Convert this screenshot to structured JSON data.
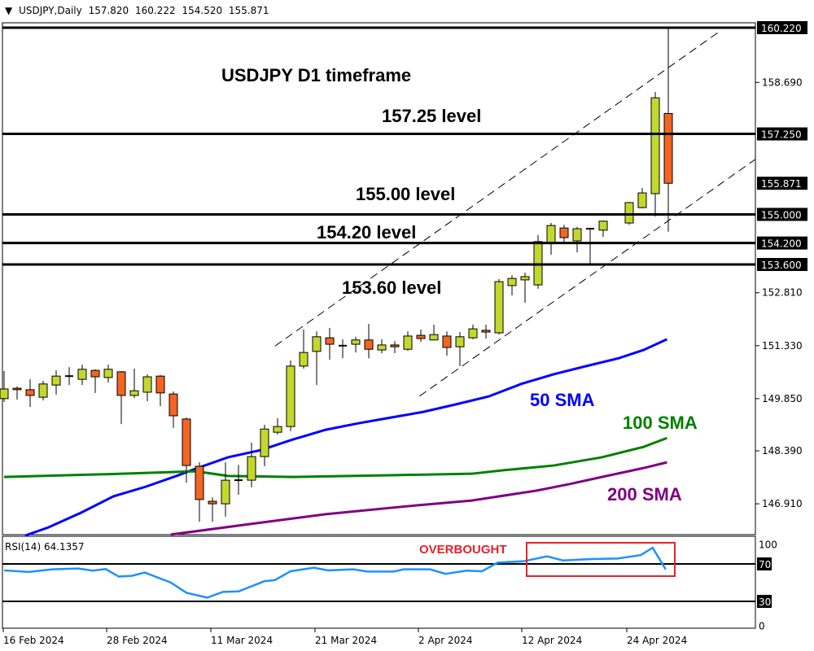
{
  "header": {
    "menu_icon": "triangle-down-icon",
    "symbol": "USDJPY,Daily",
    "open": "157.820",
    "high": "160.222",
    "low": "154.520",
    "close": "155.871"
  },
  "chart_data": {
    "type": "candlestick",
    "price_axis": {
      "range": [
        145.9,
        160.32
      ],
      "tick_labels": [
        "160.220",
        "158.690",
        "157.250",
        "155.871",
        "155.000",
        "154.200",
        "153.600",
        "152.810",
        "151.330",
        "149.850",
        "148.390",
        "146.910"
      ]
    },
    "date_axis": {
      "tick_labels": [
        "16 Feb 2024",
        "28 Feb 2024",
        "11 Mar 2024",
        "21 Mar 2024",
        "2 Apr 2024",
        "12 Apr 2024",
        "24 Apr 2024"
      ]
    },
    "colors": {
      "bull": "#c3d82e",
      "bear": "#f26522",
      "sma50": "#0000ff",
      "sma100": "#008000",
      "sma200": "#800080",
      "rsi": "#1e90ff",
      "annotation": "#e8202a"
    },
    "candles_ohlc": [
      [
        149.85,
        150.62,
        149.76,
        150.12
      ],
      [
        150.14,
        150.19,
        149.82,
        150.1
      ],
      [
        150.1,
        150.39,
        149.62,
        149.94
      ],
      [
        149.89,
        150.35,
        149.8,
        150.26
      ],
      [
        150.23,
        150.64,
        149.96,
        150.48
      ],
      [
        150.48,
        150.73,
        150.23,
        150.48
      ],
      [
        150.39,
        150.8,
        150.23,
        150.67
      ],
      [
        150.64,
        150.67,
        150.01,
        150.46
      ],
      [
        150.44,
        150.8,
        150.3,
        150.67
      ],
      [
        150.6,
        150.62,
        149.14,
        149.94
      ],
      [
        149.94,
        150.69,
        149.87,
        150.07
      ],
      [
        150.03,
        150.53,
        149.78,
        150.46
      ],
      [
        150.48,
        150.51,
        149.64,
        150.01
      ],
      [
        149.98,
        150.05,
        149.03,
        149.37
      ],
      [
        149.28,
        149.32,
        147.5,
        147.98
      ],
      [
        147.96,
        148.07,
        146.41,
        147.03
      ],
      [
        146.98,
        147.09,
        146.41,
        146.91
      ],
      [
        146.91,
        148.07,
        146.55,
        147.57
      ],
      [
        147.57,
        148.0,
        147.16,
        147.57
      ],
      [
        147.57,
        148.62,
        147.37,
        148.23
      ],
      [
        148.23,
        149.12,
        147.96,
        149.0
      ],
      [
        148.91,
        149.3,
        148.85,
        149.07
      ],
      [
        149.07,
        150.92,
        148.94,
        150.76
      ],
      [
        150.76,
        151.78,
        150.69,
        151.14
      ],
      [
        151.17,
        151.73,
        150.23,
        151.58
      ],
      [
        151.55,
        151.83,
        150.94,
        151.37
      ],
      [
        151.33,
        151.51,
        150.98,
        151.33
      ],
      [
        151.37,
        151.58,
        151.14,
        151.49
      ],
      [
        151.49,
        151.94,
        150.98,
        151.23
      ],
      [
        151.21,
        151.51,
        151.12,
        151.35
      ],
      [
        151.35,
        151.46,
        151.12,
        151.3
      ],
      [
        151.23,
        151.73,
        151.19,
        151.6
      ],
      [
        151.62,
        151.78,
        151.44,
        151.53
      ],
      [
        151.49,
        151.92,
        151.49,
        151.64
      ],
      [
        151.6,
        151.73,
        151.05,
        151.28
      ],
      [
        151.3,
        151.71,
        150.76,
        151.58
      ],
      [
        151.55,
        151.92,
        151.51,
        151.8
      ],
      [
        151.76,
        151.92,
        151.53,
        151.71
      ],
      [
        151.69,
        153.19,
        151.64,
        153.12
      ],
      [
        153.01,
        153.3,
        152.74,
        153.21
      ],
      [
        153.17,
        153.37,
        152.53,
        153.26
      ],
      [
        153.03,
        154.42,
        152.92,
        154.24
      ],
      [
        154.21,
        154.76,
        153.87,
        154.69
      ],
      [
        154.62,
        154.71,
        154.21,
        154.35
      ],
      [
        154.26,
        154.65,
        153.94,
        154.6
      ],
      [
        154.6,
        154.62,
        153.6,
        154.6
      ],
      [
        154.56,
        154.83,
        154.37,
        154.81
      ],
      null,
      [
        154.76,
        155.35,
        154.71,
        155.33
      ],
      [
        155.19,
        155.74,
        155.17,
        155.6
      ],
      [
        155.58,
        158.42,
        154.94,
        158.26
      ],
      [
        157.82,
        160.22,
        154.52,
        155.87
      ]
    ],
    "series": [
      {
        "name": "50 SMA",
        "points": [
          [
            1.6,
            146.02
          ],
          [
            3.4,
            146.25
          ],
          [
            5.9,
            146.66
          ],
          [
            8.4,
            147.12
          ],
          [
            10.9,
            147.39
          ],
          [
            13.4,
            147.71
          ],
          [
            14.7,
            147.89
          ],
          [
            17.2,
            148.21
          ],
          [
            19.7,
            148.41
          ],
          [
            22.2,
            148.71
          ],
          [
            24.7,
            148.98
          ],
          [
            27.2,
            149.16
          ],
          [
            29.7,
            149.32
          ],
          [
            32.2,
            149.48
          ],
          [
            34.7,
            149.69
          ],
          [
            37.2,
            149.91
          ],
          [
            39.7,
            150.26
          ],
          [
            42.2,
            150.53
          ],
          [
            44.7,
            150.76
          ],
          [
            47.2,
            150.98
          ],
          [
            49.1,
            151.21
          ],
          [
            50.9,
            151.51
          ]
        ]
      },
      {
        "name": "100 SMA",
        "points": [
          [
            0,
            147.66
          ],
          [
            9.1,
            147.75
          ],
          [
            14.7,
            147.82
          ],
          [
            17.2,
            147.69
          ],
          [
            22.2,
            147.66
          ],
          [
            29.7,
            147.71
          ],
          [
            35.9,
            147.75
          ],
          [
            38.4,
            147.85
          ],
          [
            42.2,
            147.98
          ],
          [
            45.9,
            148.21
          ],
          [
            49.1,
            148.5
          ],
          [
            50.9,
            148.75
          ]
        ]
      },
      {
        "name": "200 SMA",
        "points": [
          [
            12.8,
            146.05
          ],
          [
            18.4,
            146.32
          ],
          [
            24.7,
            146.62
          ],
          [
            30.9,
            146.84
          ],
          [
            35.9,
            147.0
          ],
          [
            40.9,
            147.28
          ],
          [
            43.4,
            147.46
          ],
          [
            45.9,
            147.66
          ],
          [
            49.1,
            147.91
          ],
          [
            50.9,
            148.07
          ]
        ]
      }
    ],
    "channel_lines": [
      [
        [
          20.8,
          151.32
        ],
        [
          54.8,
          160.08
        ]
      ],
      [
        [
          31.9,
          149.92
        ],
        [
          57.7,
          156.54
        ]
      ]
    ],
    "levels": [
      160.22,
      157.25,
      155.0,
      154.2,
      153.6
    ],
    "current_price": "155.871",
    "annotations": {
      "title": "USDJPY D1 timeframe",
      "level_157": "157.25 level",
      "level_155": "155.00 level",
      "level_1542": "154.20 level",
      "level_1536": "153.60 level",
      "sma50": "50 SMA",
      "sma100": "100 SMA",
      "sma200": "200 SMA"
    },
    "rsi": {
      "label": "RSI(14) 64.1357",
      "range": [
        0,
        100
      ],
      "levels": [
        70,
        30
      ],
      "tick_labels": [
        "100",
        "70",
        "30",
        "0"
      ],
      "overbought_label": "OVERBOUGHT",
      "points": [
        [
          0,
          63.1
        ],
        [
          1.9,
          61.4
        ],
        [
          3.7,
          64.2
        ],
        [
          5.7,
          65.1
        ],
        [
          6.8,
          62.8
        ],
        [
          7.8,
          64.5
        ],
        [
          8.8,
          56.5
        ],
        [
          9.8,
          57.3
        ],
        [
          10.8,
          60.8
        ],
        [
          12.8,
          50.1
        ],
        [
          14.0,
          39.2
        ],
        [
          15.6,
          34.0
        ],
        [
          16.8,
          40.1
        ],
        [
          18.0,
          40.6
        ],
        [
          20.0,
          51.6
        ],
        [
          20.8,
          52.7
        ],
        [
          22.0,
          62.2
        ],
        [
          23.8,
          66.0
        ],
        [
          24.9,
          63.1
        ],
        [
          26.8,
          64.2
        ],
        [
          27.9,
          61.9
        ],
        [
          29.9,
          61.9
        ],
        [
          30.7,
          64.2
        ],
        [
          32.7,
          64.2
        ],
        [
          33.9,
          59.4
        ],
        [
          35.5,
          62.8
        ],
        [
          36.7,
          62.2
        ],
        [
          37.9,
          71.4
        ],
        [
          39.9,
          72.9
        ],
        [
          41.7,
          78.1
        ],
        [
          42.9,
          73.7
        ],
        [
          45.1,
          75.2
        ],
        [
          47.1,
          75.8
        ],
        [
          48.9,
          79.5
        ],
        [
          49.8,
          87.3
        ],
        [
          50.8,
          64.1
        ]
      ]
    }
  }
}
